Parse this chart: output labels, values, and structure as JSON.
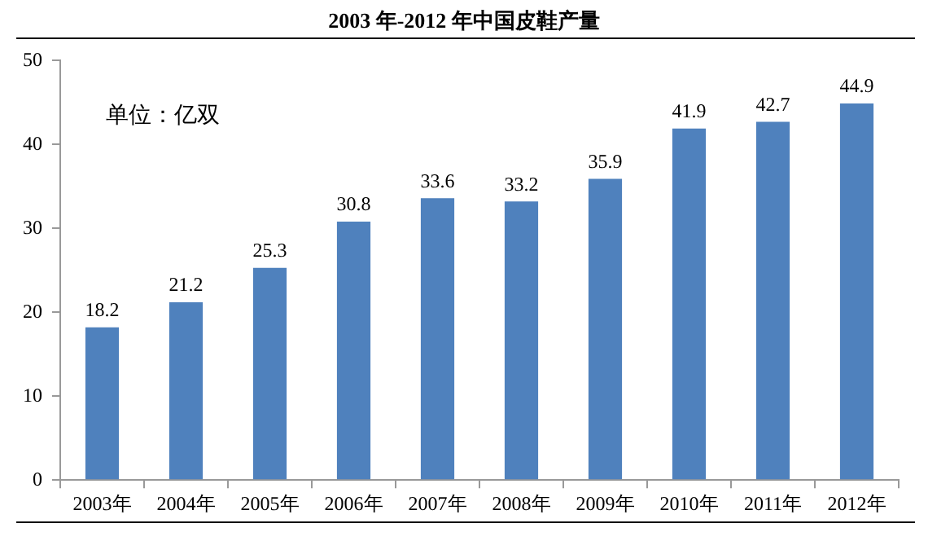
{
  "chart_data": {
    "type": "bar",
    "title": "2003 年-2012 年中国皮鞋产量",
    "categories": [
      "2003年",
      "2004年",
      "2005年",
      "2006年",
      "2007年",
      "2008年",
      "2009年",
      "2010年",
      "2011年",
      "2012年"
    ],
    "values": [
      18.2,
      21.2,
      25.3,
      30.8,
      33.6,
      33.2,
      35.9,
      41.9,
      42.7,
      44.9
    ],
    "color": "#4f81bd",
    "ylim": [
      0,
      50
    ],
    "yticks": [
      0,
      10,
      20,
      30,
      40,
      50
    ],
    "grid": false,
    "legend": false,
    "data_labels": true,
    "annotations": [
      "单位：亿双"
    ]
  }
}
